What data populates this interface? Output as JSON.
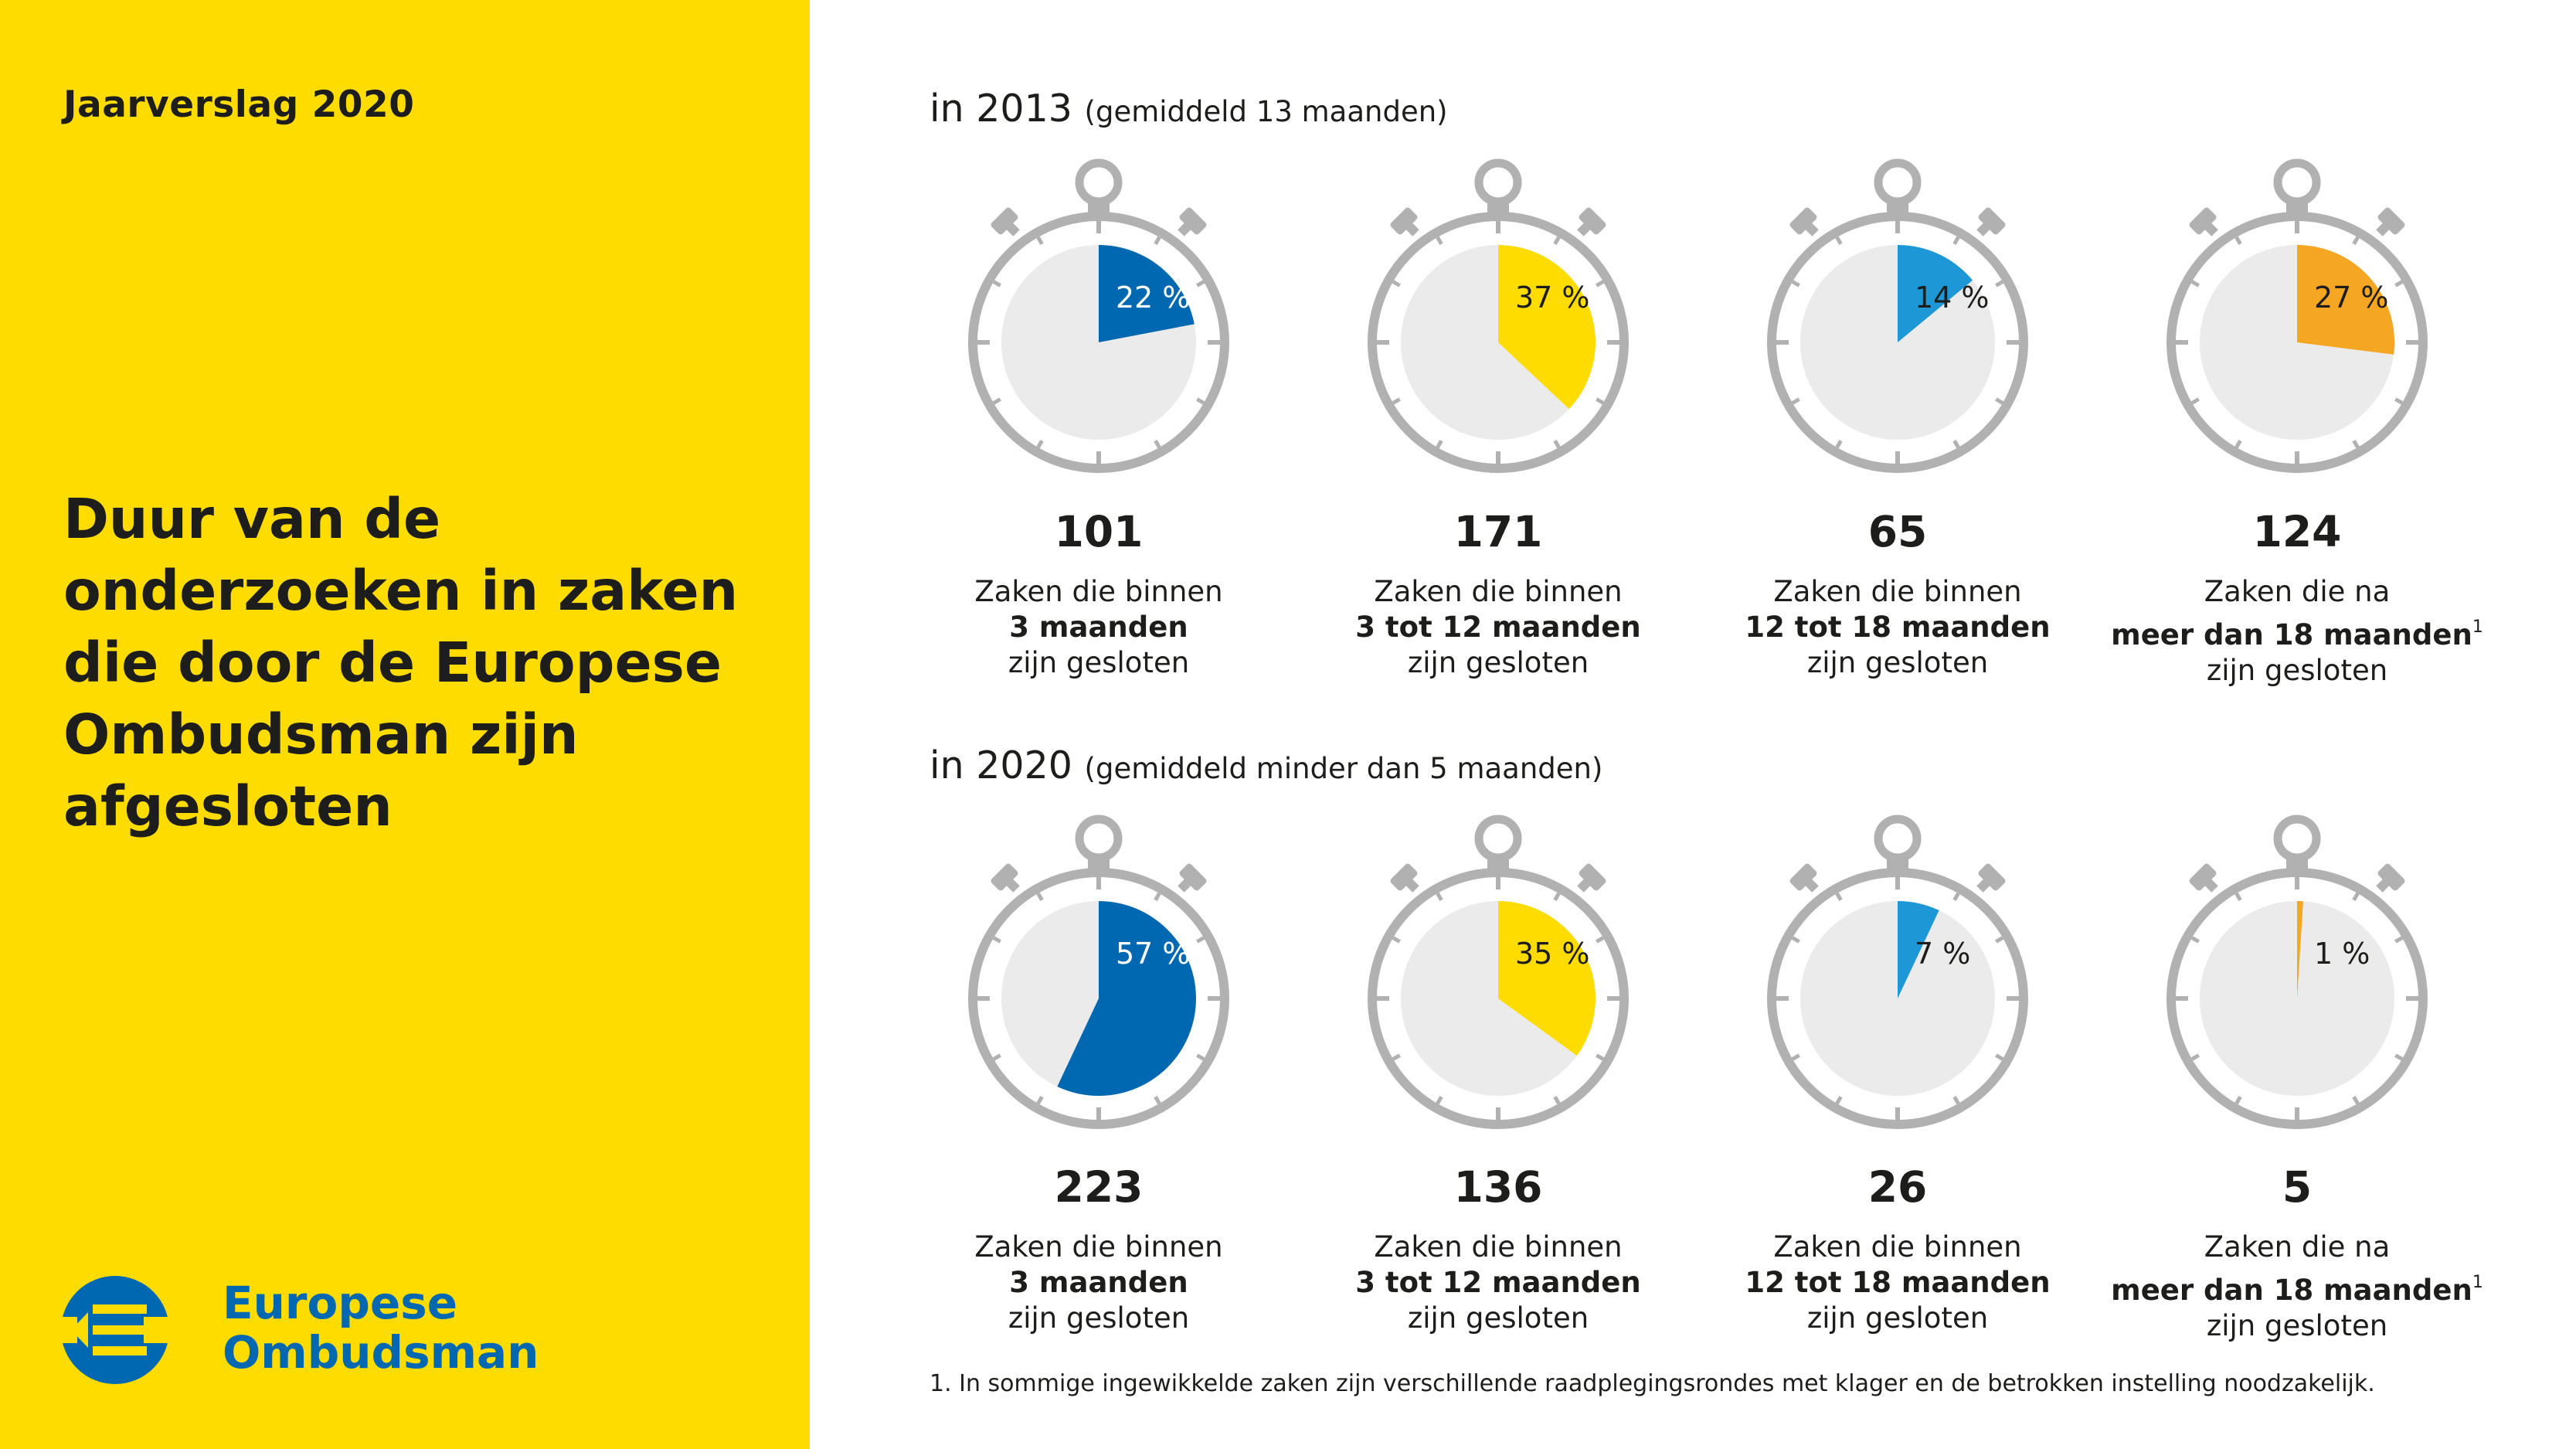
{
  "header": {
    "report_title": "Jaarverslag 2020"
  },
  "main_title": "Duur van de onderzoeken in zaken die door de Europese Ombudsman zijn afgesloten",
  "logo": {
    "line1": "Europese",
    "line2": "Ombudsman",
    "icon": "euro-ombudsman-logo-icon",
    "colors": {
      "blue": "#0067b1",
      "yellow": "#ffdc00"
    }
  },
  "footnote": "1. In sommige ingewikkelde zaken zijn verschillende raadplegingsrondes met klager en de betrokken instelling noodzakelijk.",
  "chart_data": [
    {
      "type": "pie",
      "title": "in 2013",
      "subtitle": "(gemiddeld 13 maanden)",
      "categories": [
        "3 maanden",
        "3 tot 12 maanden",
        "12 tot 18 maanden",
        "meer dan 18 maanden"
      ],
      "values": [
        22,
        37,
        14,
        27
      ],
      "value_labels": [
        "22 %",
        "37 %",
        "14 %",
        "27 %"
      ],
      "counts": [
        "101",
        "171",
        "65",
        "124"
      ],
      "desc": [
        {
          "pre": "Zaken die binnen",
          "bold": "3 maanden",
          "sup": "",
          "post": "zijn gesloten"
        },
        {
          "pre": "Zaken die binnen",
          "bold": "3 tot 12 maanden",
          "sup": "",
          "post": "zijn gesloten"
        },
        {
          "pre": "Zaken die binnen",
          "bold": "12 tot 18 maanden",
          "sup": "",
          "post": "zijn gesloten"
        },
        {
          "pre": "Zaken die na",
          "bold": "meer dan 18 maanden",
          "sup": "1",
          "post": "zijn gesloten"
        }
      ],
      "colors": [
        "#0067b1",
        "#ffdc00",
        "#1d97d6",
        "#f5a623"
      ],
      "label_colors": [
        "#ffffff",
        "#1d1d1b",
        "#1d1d1b",
        "#1d1d1b"
      ],
      "remainder_color": "#ebebeb"
    },
    {
      "type": "pie",
      "title": "in 2020",
      "subtitle": "(gemiddeld minder dan 5 maanden)",
      "categories": [
        "3 maanden",
        "3 tot 12 maanden",
        "12 tot 18 maanden",
        "meer dan 18 maanden"
      ],
      "values": [
        57,
        35,
        7,
        1
      ],
      "value_labels": [
        "57 %",
        "35 %",
        "7 %",
        "1 %"
      ],
      "counts": [
        "223",
        "136",
        "26",
        "5"
      ],
      "desc": [
        {
          "pre": "Zaken die binnen",
          "bold": "3 maanden",
          "sup": "",
          "post": "zijn gesloten"
        },
        {
          "pre": "Zaken die binnen",
          "bold": "3 tot 12 maanden",
          "sup": "",
          "post": "zijn gesloten"
        },
        {
          "pre": "Zaken die binnen",
          "bold": "12 tot 18 maanden",
          "sup": "",
          "post": "zijn gesloten"
        },
        {
          "pre": "Zaken die na",
          "bold": "meer dan 18 maanden",
          "sup": "1",
          "post": "zijn gesloten"
        }
      ],
      "colors": [
        "#0067b1",
        "#ffdc00",
        "#1d97d6",
        "#f5a623"
      ],
      "label_colors": [
        "#ffffff",
        "#1d1d1b",
        "#1d1d1b",
        "#1d1d1b"
      ],
      "remainder_color": "#ebebeb"
    }
  ]
}
